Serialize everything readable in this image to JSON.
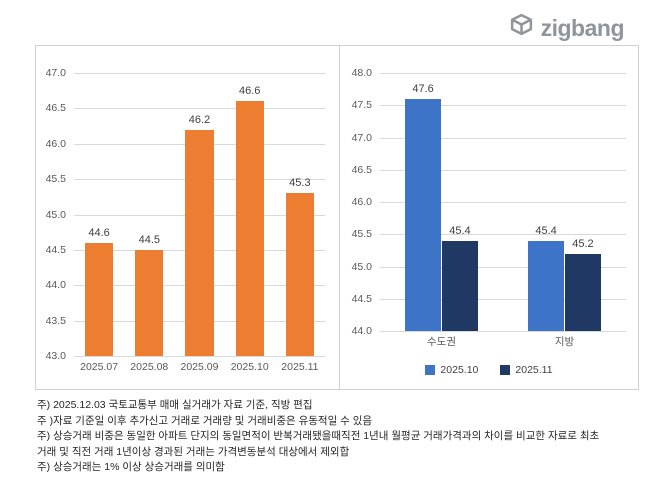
{
  "logo": {
    "text": "zigbang"
  },
  "colors": {
    "orange": "#ED7D31",
    "blue": "#3E74C8",
    "navy": "#1F3864",
    "grid": "#d9d9d9",
    "logo_gray": "#8e959b"
  },
  "chart_data": [
    {
      "type": "bar",
      "title": "",
      "categories": [
        "2025.07",
        "2025.08",
        "2025.09",
        "2025.10",
        "2025.11"
      ],
      "values": [
        44.6,
        44.5,
        46.2,
        46.6,
        45.3
      ],
      "bar_color": "#ED7D31",
      "ylim": [
        43.0,
        47.0
      ],
      "ytick_step": 0.5,
      "grid": true,
      "legend": "none",
      "value_labels": true
    },
    {
      "type": "bar",
      "title": "",
      "categories": [
        "수도권",
        "지방"
      ],
      "series": [
        {
          "name": "2025.10",
          "values": [
            47.6,
            45.4
          ],
          "color": "#3E74C8"
        },
        {
          "name": "2025.11",
          "values": [
            45.4,
            45.2
          ],
          "color": "#1F3864"
        }
      ],
      "ylim": [
        44.0,
        48.0
      ],
      "ytick_step": 0.5,
      "grid": true,
      "legend": "bottom",
      "value_labels": true
    }
  ],
  "footnotes": [
    "주) 2025.12.03 국토교통부 매매 실거래가 자료 기준, 직방 편집",
    "주 )자료 기준일 이후 추가신고 거래로 거래량 및 거래비중은 유동적일 수 있음",
    "주) 상승거래 비중은 동일한 아파트 단지의 동일면적이 반복거래됐을때직전 1년내 월평균 거래가격과의 차이를 비교한 자료로 최초",
    "거래 및 직전 거래 1년이상 경과된 거래는 가격변동분석 대상에서 제외합",
    "주) 상승거래는 1% 이상 상승거래를 의미함"
  ]
}
